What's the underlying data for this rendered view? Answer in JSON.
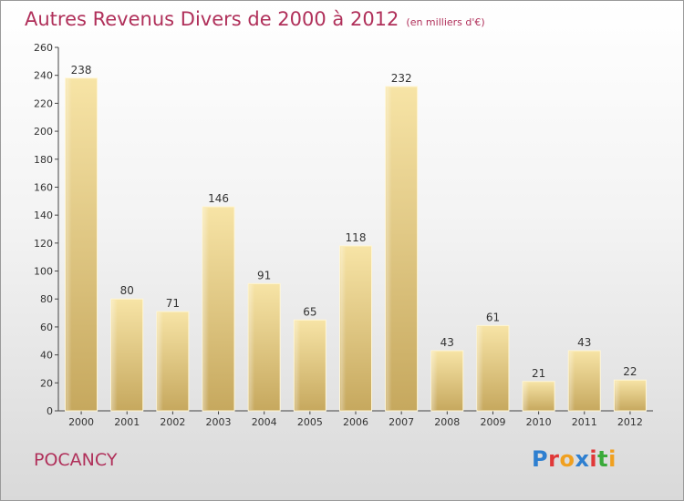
{
  "title": "Autres Revenus Divers de 2000 à 2012",
  "subtitle": "(en milliers d'€)",
  "commune": "POCANCY",
  "logo": {
    "letters": [
      "P",
      "r",
      "o",
      "x",
      "i",
      "t",
      "i"
    ],
    "colors": [
      "#2e7fd0",
      "#e03838",
      "#f0a020",
      "#2e7fd0",
      "#e03838",
      "#3aaa3a",
      "#f0a020"
    ]
  },
  "colors": {
    "bar_light": "#f5e0a0",
    "bar_dark": "#c8aa60",
    "accent": "#b0305a"
  },
  "chart_data": {
    "type": "bar",
    "categories": [
      "2000",
      "2001",
      "2002",
      "2003",
      "2004",
      "2005",
      "2006",
      "2007",
      "2008",
      "2009",
      "2010",
      "2011",
      "2012"
    ],
    "values": [
      238,
      80,
      71,
      146,
      91,
      65,
      118,
      232,
      43,
      61,
      21,
      43,
      22
    ],
    "title": "Autres Revenus Divers de 2000 à 2012",
    "ylim": [
      0,
      260
    ],
    "yticks": [
      0,
      20,
      40,
      60,
      80,
      100,
      120,
      140,
      160,
      180,
      200,
      220,
      240,
      260
    ],
    "grid": false
  }
}
